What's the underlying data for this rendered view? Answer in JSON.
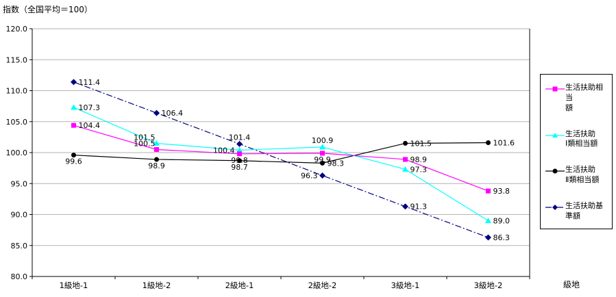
{
  "chart_data": {
    "type": "line",
    "title": "指数（全国平均＝100）",
    "xlabel": "級地",
    "ylabel": "",
    "categories": [
      "1級地-1",
      "1級地-2",
      "2級地-1",
      "2級地-2",
      "3級地-1",
      "3級地-2"
    ],
    "ylim": [
      80.0,
      120.0
    ],
    "ytick_step": 5.0,
    "ytick_labels": [
      "80.0",
      "85.0",
      "90.0",
      "95.0",
      "100.0",
      "105.0",
      "110.0",
      "115.0",
      "120.0"
    ],
    "grid": true,
    "legend_position": "right",
    "colors": {
      "grid": "#b3b3b3",
      "axis": "#000000",
      "label": "#000000"
    },
    "series": [
      {
        "name": "生活扶助相当額",
        "legend_label": "生活扶助相当\n額",
        "color": "#FF00FF",
        "marker": "square",
        "line_style": "solid",
        "values": [
          104.4,
          100.5,
          99.8,
          99.9,
          98.9,
          93.8
        ],
        "labels": [
          "104.4",
          "100.5",
          "99.8",
          "99.9",
          "98.9",
          "93.8"
        ],
        "label_pos": [
          "right",
          "above-left",
          "below",
          "below",
          "right",
          "right"
        ]
      },
      {
        "name": "生活扶助Ⅰ類相当額",
        "legend_label": "生活扶助\nⅠ類相当額",
        "color": "#00FFFF",
        "marker": "triangle",
        "line_style": "solid",
        "values": [
          107.3,
          101.5,
          100.4,
          100.9,
          97.3,
          89.0
        ],
        "labels": [
          "107.3",
          "101.5",
          "100.4",
          "100.9",
          "97.3",
          "89.0"
        ],
        "label_pos": [
          "right",
          "above-left",
          "left",
          "above",
          "right",
          "right"
        ]
      },
      {
        "name": "生活扶助Ⅱ類相当額",
        "legend_label": "生活扶助\nⅡ類相当額",
        "color": "#000000",
        "marker": "circle",
        "line_style": "solid",
        "values": [
          99.6,
          98.9,
          98.7,
          98.3,
          101.5,
          101.6
        ],
        "labels": [
          "99.6",
          "98.9",
          "98.7",
          "98.3",
          "101.5",
          "101.6"
        ],
        "label_pos": [
          "below",
          "below",
          "below",
          "right",
          "right",
          "right"
        ]
      },
      {
        "name": "生活扶助基準額",
        "legend_label": "生活扶助基\n準額",
        "color": "#000080",
        "marker": "diamond",
        "line_style": "dash-dot",
        "values": [
          111.4,
          106.4,
          101.4,
          96.3,
          91.3,
          86.3
        ],
        "labels": [
          "111.4",
          "106.4",
          "101.4",
          "96.3",
          "91.3",
          "86.3"
        ],
        "label_pos": [
          "right",
          "right",
          "above",
          "left",
          "right",
          "right"
        ]
      }
    ]
  }
}
